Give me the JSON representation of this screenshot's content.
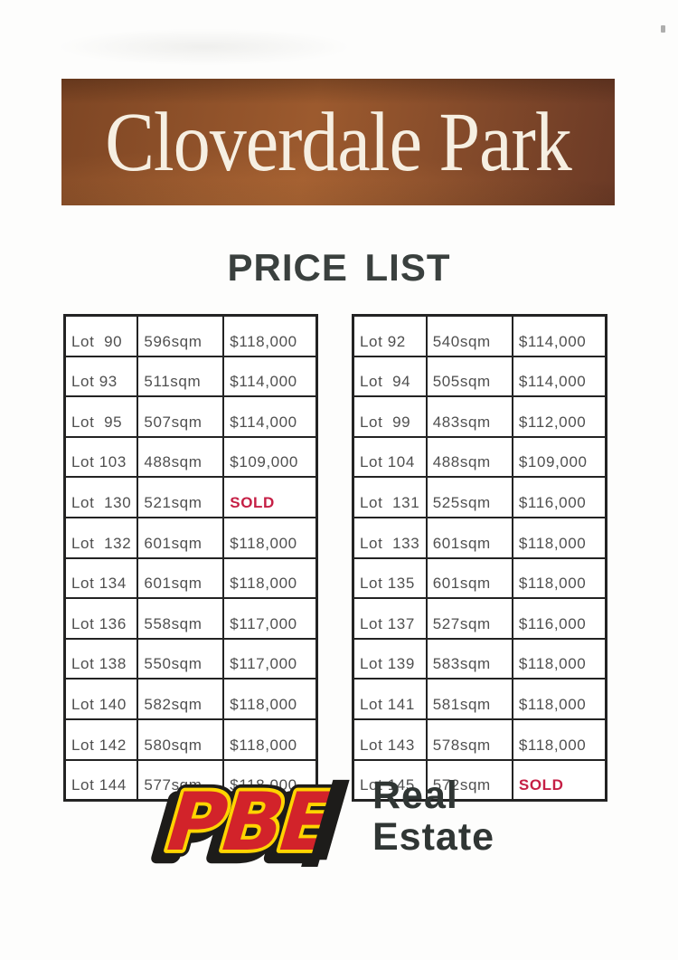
{
  "banner": {
    "title": "Cloverdale Park",
    "background_top": "#7e4624",
    "background_mid": "#9c5a2e",
    "background_right": "#6b3a26",
    "text_color": "#f6efe2"
  },
  "heading": {
    "text": "PRICE LIST",
    "color": "#3a403e"
  },
  "price_tables": {
    "columns": [
      "lot",
      "size",
      "price"
    ],
    "left": {
      "rows": [
        {
          "lot": "Lot  90",
          "size": "596sqm",
          "price": "$118,000"
        },
        {
          "lot": "Lot 93",
          "size": "511sqm",
          "price": "$114,000"
        },
        {
          "lot": "Lot  95",
          "size": "507sqm",
          "price": "$114,000"
        },
        {
          "lot": "Lot 103",
          "size": "488sqm",
          "price": "$109,000"
        },
        {
          "lot": "Lot  130",
          "size": "521sqm",
          "price": "SOLD",
          "sold": true
        },
        {
          "lot": "Lot  132",
          "size": "601sqm",
          "price": "$118,000"
        },
        {
          "lot": "Lot 134",
          "size": "601sqm",
          "price": "$118,000"
        },
        {
          "lot": "Lot 136",
          "size": "558sqm",
          "price": "$117,000"
        },
        {
          "lot": "Lot 138",
          "size": "550sqm",
          "price": "$117,000"
        },
        {
          "lot": "Lot 140",
          "size": "582sqm",
          "price": "$118,000"
        },
        {
          "lot": "Lot 142",
          "size": "580sqm",
          "price": "$118,000"
        },
        {
          "lot": "Lot 144",
          "size": "577sqm",
          "price": "$118,000"
        }
      ]
    },
    "right": {
      "rows": [
        {
          "lot": "Lot 92",
          "size": "540sqm",
          "price": "$114,000"
        },
        {
          "lot": "Lot  94",
          "size": "505sqm",
          "price": "$114,000"
        },
        {
          "lot": "Lot  99",
          "size": "483sqm",
          "price": "$112,000"
        },
        {
          "lot": "Lot 104",
          "size": "488sqm",
          "price": "$109,000"
        },
        {
          "lot": "Lot  131",
          "size": "525sqm",
          "price": "$116,000"
        },
        {
          "lot": "Lot  133",
          "size": "601sqm",
          "price": "$118,000"
        },
        {
          "lot": "Lot 135",
          "size": "601sqm",
          "price": "$118,000"
        },
        {
          "lot": "Lot 137",
          "size": "527sqm",
          "price": "$116,000"
        },
        {
          "lot": "Lot 139",
          "size": "583sqm",
          "price": "$118,000"
        },
        {
          "lot": "Lot 141",
          "size": "581sqm",
          "price": "$118,000"
        },
        {
          "lot": "Lot 143",
          "size": "578sqm",
          "price": "$118,000"
        },
        {
          "lot": "Lot 145",
          "size": "572sqm",
          "price": "SOLD",
          "sold": true
        }
      ]
    }
  },
  "status": {
    "sold_label": "SOLD",
    "sold_color": "#c51f45"
  },
  "logo": {
    "brand": "PBE",
    "name_line1": "Real",
    "name_line2": "Estate",
    "brand_red": "#d2232a",
    "brand_yellow": "#ffd400",
    "brand_black": "#1d1c1a",
    "name_color": "#303634"
  }
}
